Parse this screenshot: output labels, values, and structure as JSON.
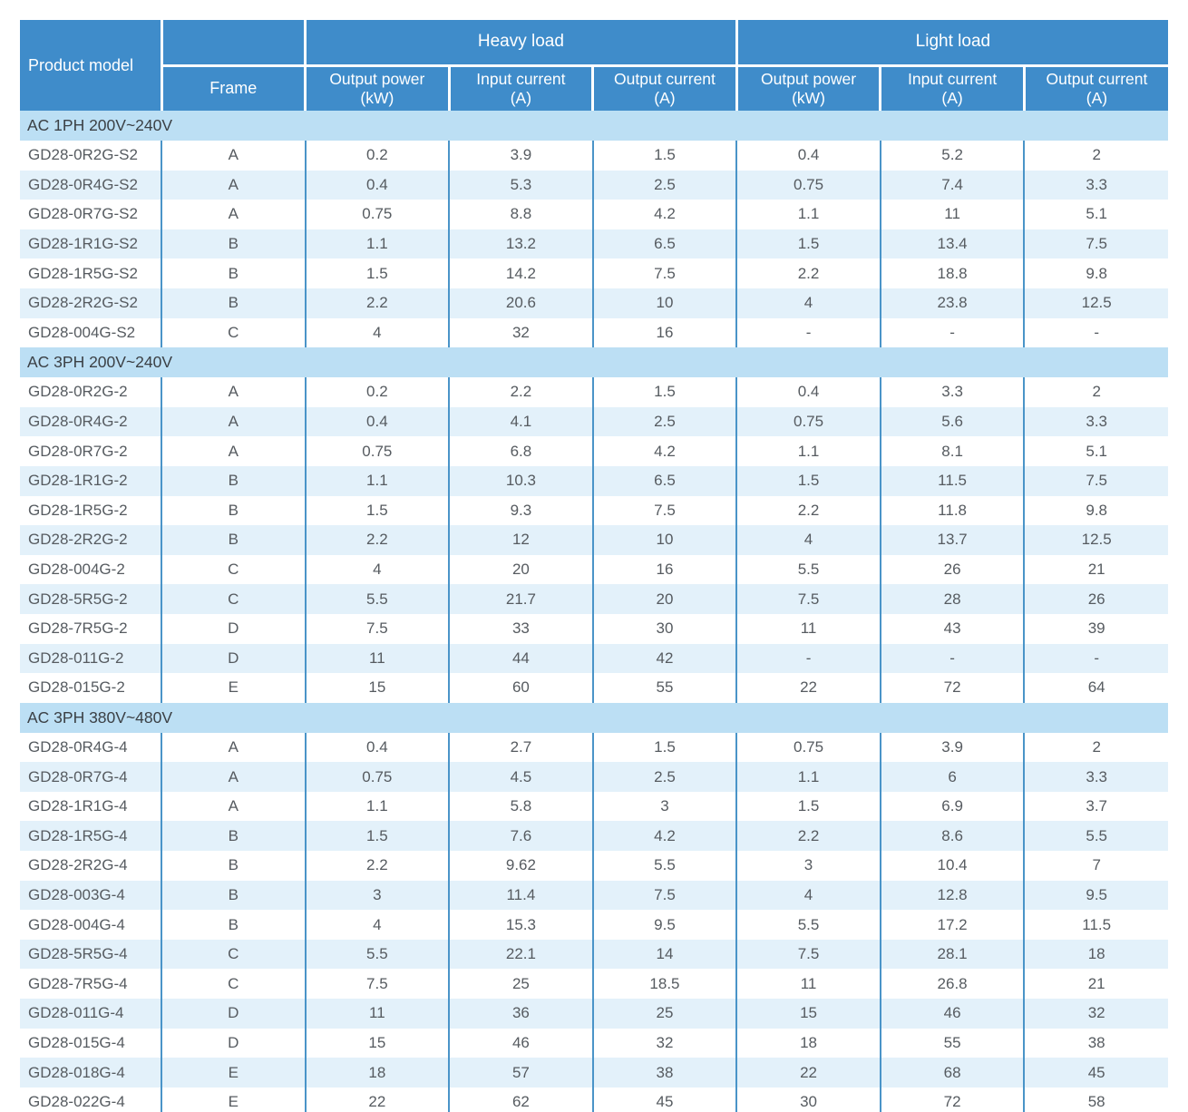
{
  "colors": {
    "header_bg": "#3F8CCA",
    "section_bg": "#BCDFF4",
    "row_alt_bg": "#E3F1FA",
    "border_color": "#4A94C8",
    "bottom_line": "#6B9EC4",
    "header_text": "#FFFFFF",
    "cell_text": "#565B60",
    "section_text": "#3B4045"
  },
  "header": {
    "product_model": "Product model",
    "frame": "Frame",
    "groups": [
      {
        "label": "Heavy load",
        "columns": [
          {
            "title": "Output power",
            "unit": "(kW)"
          },
          {
            "title": "Input current",
            "unit": "(A)"
          },
          {
            "title": "Output current",
            "unit": "(A)"
          }
        ]
      },
      {
        "label": "Light load",
        "columns": [
          {
            "title": "Output power",
            "unit": "(kW)"
          },
          {
            "title": "Input current",
            "unit": "(A)"
          },
          {
            "title": "Output current",
            "unit": "(A)"
          }
        ]
      }
    ]
  },
  "sections": [
    {
      "label": "AC 1PH 200V~240V",
      "rows": [
        [
          "GD28-0R2G-S2",
          "A",
          "0.2",
          "3.9",
          "1.5",
          "0.4",
          "5.2",
          "2"
        ],
        [
          "GD28-0R4G-S2",
          "A",
          "0.4",
          "5.3",
          "2.5",
          "0.75",
          "7.4",
          "3.3"
        ],
        [
          "GD28-0R7G-S2",
          "A",
          "0.75",
          "8.8",
          "4.2",
          "1.1",
          "11",
          "5.1"
        ],
        [
          "GD28-1R1G-S2",
          "B",
          "1.1",
          "13.2",
          "6.5",
          "1.5",
          "13.4",
          "7.5"
        ],
        [
          "GD28-1R5G-S2",
          "B",
          "1.5",
          "14.2",
          "7.5",
          "2.2",
          "18.8",
          "9.8"
        ],
        [
          "GD28-2R2G-S2",
          "B",
          "2.2",
          "20.6",
          "10",
          "4",
          "23.8",
          "12.5"
        ],
        [
          "GD28-004G-S2",
          "C",
          "4",
          "32",
          "16",
          "-",
          "-",
          "-"
        ]
      ]
    },
    {
      "label": "AC 3PH 200V~240V",
      "rows": [
        [
          "GD28-0R2G-2",
          "A",
          "0.2",
          "2.2",
          "1.5",
          "0.4",
          "3.3",
          "2"
        ],
        [
          "GD28-0R4G-2",
          "A",
          "0.4",
          "4.1",
          "2.5",
          "0.75",
          "5.6",
          "3.3"
        ],
        [
          "GD28-0R7G-2",
          "A",
          "0.75",
          "6.8",
          "4.2",
          "1.1",
          "8.1",
          "5.1"
        ],
        [
          "GD28-1R1G-2",
          "B",
          "1.1",
          "10.3",
          "6.5",
          "1.5",
          "11.5",
          "7.5"
        ],
        [
          "GD28-1R5G-2",
          "B",
          "1.5",
          "9.3",
          "7.5",
          "2.2",
          "11.8",
          "9.8"
        ],
        [
          "GD28-2R2G-2",
          "B",
          "2.2",
          "12",
          "10",
          "4",
          "13.7",
          "12.5"
        ],
        [
          "GD28-004G-2",
          "C",
          "4",
          "20",
          "16",
          "5.5",
          "26",
          "21"
        ],
        [
          "GD28-5R5G-2",
          "C",
          "5.5",
          "21.7",
          "20",
          "7.5",
          "28",
          "26"
        ],
        [
          "GD28-7R5G-2",
          "D",
          "7.5",
          "33",
          "30",
          "11",
          "43",
          "39"
        ],
        [
          "GD28-011G-2",
          "D",
          "11",
          "44",
          "42",
          "-",
          "-",
          "-"
        ],
        [
          "GD28-015G-2",
          "E",
          "15",
          "60",
          "55",
          "22",
          "72",
          "64"
        ]
      ]
    },
    {
      "label": "AC 3PH 380V~480V",
      "rows": [
        [
          "GD28-0R4G-4",
          "A",
          "0.4",
          "2.7",
          "1.5",
          "0.75",
          "3.9",
          "2"
        ],
        [
          "GD28-0R7G-4",
          "A",
          "0.75",
          "4.5",
          "2.5",
          "1.1",
          "6",
          "3.3"
        ],
        [
          "GD28-1R1G-4",
          "A",
          "1.1",
          "5.8",
          "3",
          "1.5",
          "6.9",
          "3.7"
        ],
        [
          "GD28-1R5G-4",
          "B",
          "1.5",
          "7.6",
          "4.2",
          "2.2",
          "8.6",
          "5.5"
        ],
        [
          "GD28-2R2G-4",
          "B",
          "2.2",
          "9.62",
          "5.5",
          "3",
          "10.4",
          "7"
        ],
        [
          "GD28-003G-4",
          "B",
          "3",
          "11.4",
          "7.5",
          "4",
          "12.8",
          "9.5"
        ],
        [
          "GD28-004G-4",
          "B",
          "4",
          "15.3",
          "9.5",
          "5.5",
          "17.2",
          "11.5"
        ],
        [
          "GD28-5R5G-4",
          "C",
          "5.5",
          "22.1",
          "14",
          "7.5",
          "28.1",
          "18"
        ],
        [
          "GD28-7R5G-4",
          "C",
          "7.5",
          "25",
          "18.5",
          "11",
          "26.8",
          "21"
        ],
        [
          "GD28-011G-4",
          "D",
          "11",
          "36",
          "25",
          "15",
          "46",
          "32"
        ],
        [
          "GD28-015G-4",
          "D",
          "15",
          "46",
          "32",
          "18",
          "55",
          "38"
        ],
        [
          "GD28-018G-4",
          "E",
          "18",
          "57",
          "38",
          "22",
          "68",
          "45"
        ],
        [
          "GD28-022G-4",
          "E",
          "22",
          "62",
          "45",
          "30",
          "72",
          "58"
        ]
      ]
    }
  ]
}
